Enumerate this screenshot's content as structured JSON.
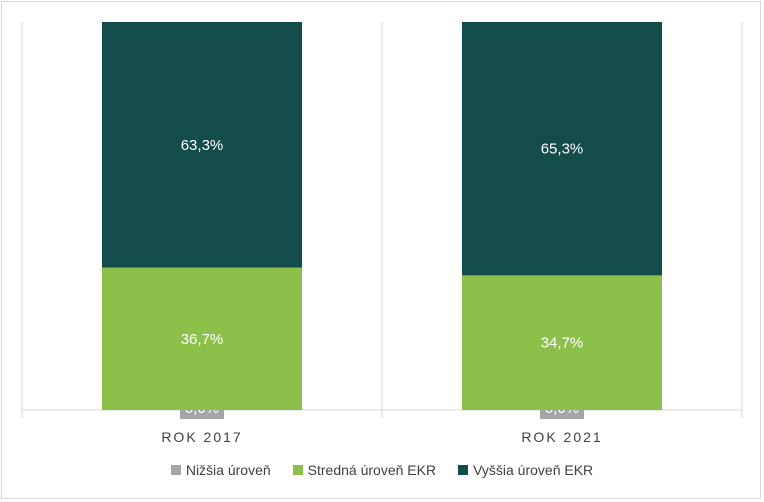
{
  "chart_data": {
    "type": "bar",
    "stacked": true,
    "stack_normalized": true,
    "categories": [
      "ROK 2017",
      "ROK 2021"
    ],
    "series": [
      {
        "name": "Nižšia úroveň",
        "values": [
          0.0,
          0.0
        ],
        "labels": [
          "0,0%",
          "0,0%"
        ],
        "color": "#a5a5a5"
      },
      {
        "name": "Stredná úroveň EKR",
        "values": [
          36.7,
          34.7
        ],
        "labels": [
          "36,7%",
          "34,7%"
        ],
        "color": "#8cc04b"
      },
      {
        "name": "Vyššia úroveň EKR",
        "values": [
          63.3,
          65.3
        ],
        "labels": [
          "63,3%",
          "65,3%"
        ],
        "color": "#144c4c"
      }
    ],
    "ylim": [
      0,
      100
    ],
    "grid": false,
    "legend_position": "bottom"
  }
}
